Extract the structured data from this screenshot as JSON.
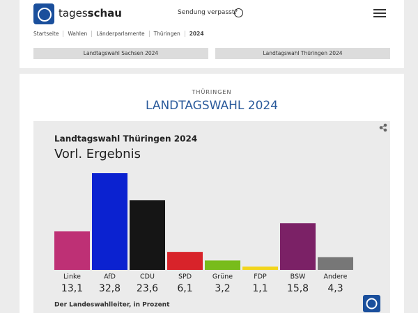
{
  "header": {
    "brand_light": "tages",
    "brand_bold": "schau",
    "sendung": "Sendung verpasst?"
  },
  "breadcrumbs": [
    "Startseite",
    "Wahlen",
    "Länderparlamente",
    "Thüringen",
    "2024"
  ],
  "tabs": [
    "Landtagswahl Sachsen 2024",
    "Landtagswahl Thüringen 2024"
  ],
  "section": {
    "kicker": "THÜRINGEN",
    "title": "LANDTAGSWAHL 2024"
  },
  "chart_data": {
    "type": "bar",
    "title": "Landtagswahl Thüringen 2024",
    "subtitle": "Vorl. Ergebnis",
    "categories": [
      "Linke",
      "AfD",
      "CDU",
      "SPD",
      "Grüne",
      "FDP",
      "BSW",
      "Andere"
    ],
    "values": [
      13.1,
      32.8,
      23.6,
      6.1,
      3.2,
      1.1,
      15.8,
      4.3
    ],
    "value_labels": [
      "13,1",
      "32,8",
      "23,6",
      "6,1",
      "3,2",
      "1,1",
      "15,8",
      "4,3"
    ],
    "colors": [
      "#be3075",
      "#0b22d0",
      "#151515",
      "#d8232a",
      "#78bc1b",
      "#f2d51c",
      "#7b2166",
      "#777777"
    ],
    "source": "Der Landeswahlleiter, in Prozent"
  }
}
